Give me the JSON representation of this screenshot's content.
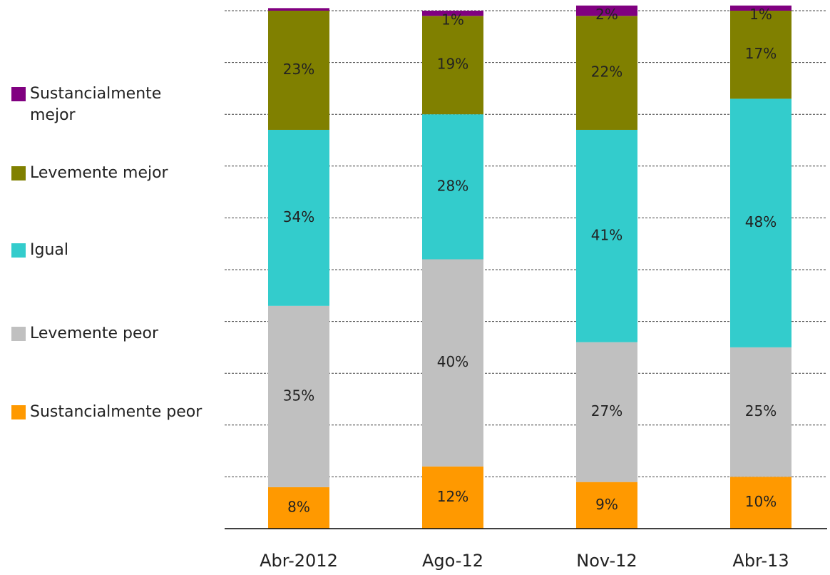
{
  "chart_data": {
    "type": "stacked_bar",
    "categories": [
      "Abr-2012",
      "Ago-12",
      "Nov-12",
      "Abr-13"
    ],
    "series": [
      {
        "name": "Sustancialmente peor",
        "color": "#FF9900",
        "values": [
          8,
          12,
          9,
          10
        ],
        "value_labels": [
          "8%",
          "12%",
          "9%",
          "10%"
        ]
      },
      {
        "name": "Levemente peor",
        "color": "#C0C0C0",
        "values": [
          35,
          40,
          27,
          25
        ],
        "value_labels": [
          "35%",
          "40%",
          "27%",
          "25%"
        ]
      },
      {
        "name": "Igual",
        "color": "#33CCCC",
        "values": [
          34,
          28,
          41,
          48
        ],
        "value_labels": [
          "34%",
          "28%",
          "41%",
          "48%"
        ]
      },
      {
        "name": "Levemente mejor",
        "color": "#808000",
        "values": [
          23,
          19,
          22,
          17
        ],
        "value_labels": [
          "23%",
          "19%",
          "22%",
          "17%"
        ]
      },
      {
        "name": "Sustancialmente mejor",
        "color": "#800080",
        "values": [
          0.5,
          1,
          2,
          1
        ],
        "value_labels": [
          null,
          "1%",
          "2%",
          "1%"
        ]
      }
    ],
    "ylim": [
      0,
      100
    ],
    "yticks": [
      0,
      10,
      20,
      30,
      40,
      50,
      60,
      70,
      80,
      90,
      100
    ],
    "grid": true,
    "legend": "left"
  }
}
